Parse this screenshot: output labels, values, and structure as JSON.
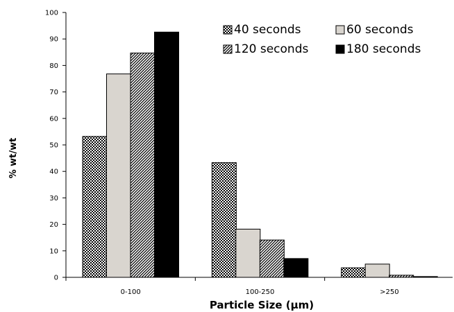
{
  "chart_data": {
    "type": "bar",
    "xlabel": "Particle Size (µm)",
    "ylabel": "% wt/wt",
    "ylim": [
      0,
      100
    ],
    "yticks": [
      0,
      10,
      20,
      30,
      40,
      50,
      60,
      70,
      80,
      90,
      100
    ],
    "categories": [
      "0-100",
      "100-250",
      ">250"
    ],
    "series": [
      {
        "name": "40 seconds",
        "values": [
          53.2,
          43.3,
          3.6
        ],
        "pattern": "checker"
      },
      {
        "name": "60 seconds",
        "values": [
          76.8,
          18.2,
          5.0
        ],
        "pattern": "solid",
        "color": "#d9d5cf"
      },
      {
        "name": "120 seconds",
        "values": [
          84.7,
          14.1,
          0.8
        ],
        "pattern": "diagonal"
      },
      {
        "name": "180 seconds",
        "values": [
          92.6,
          7.1,
          0.3
        ],
        "pattern": "solid",
        "color": "#000000"
      }
    ],
    "legend": "top-right",
    "grid": false
  }
}
